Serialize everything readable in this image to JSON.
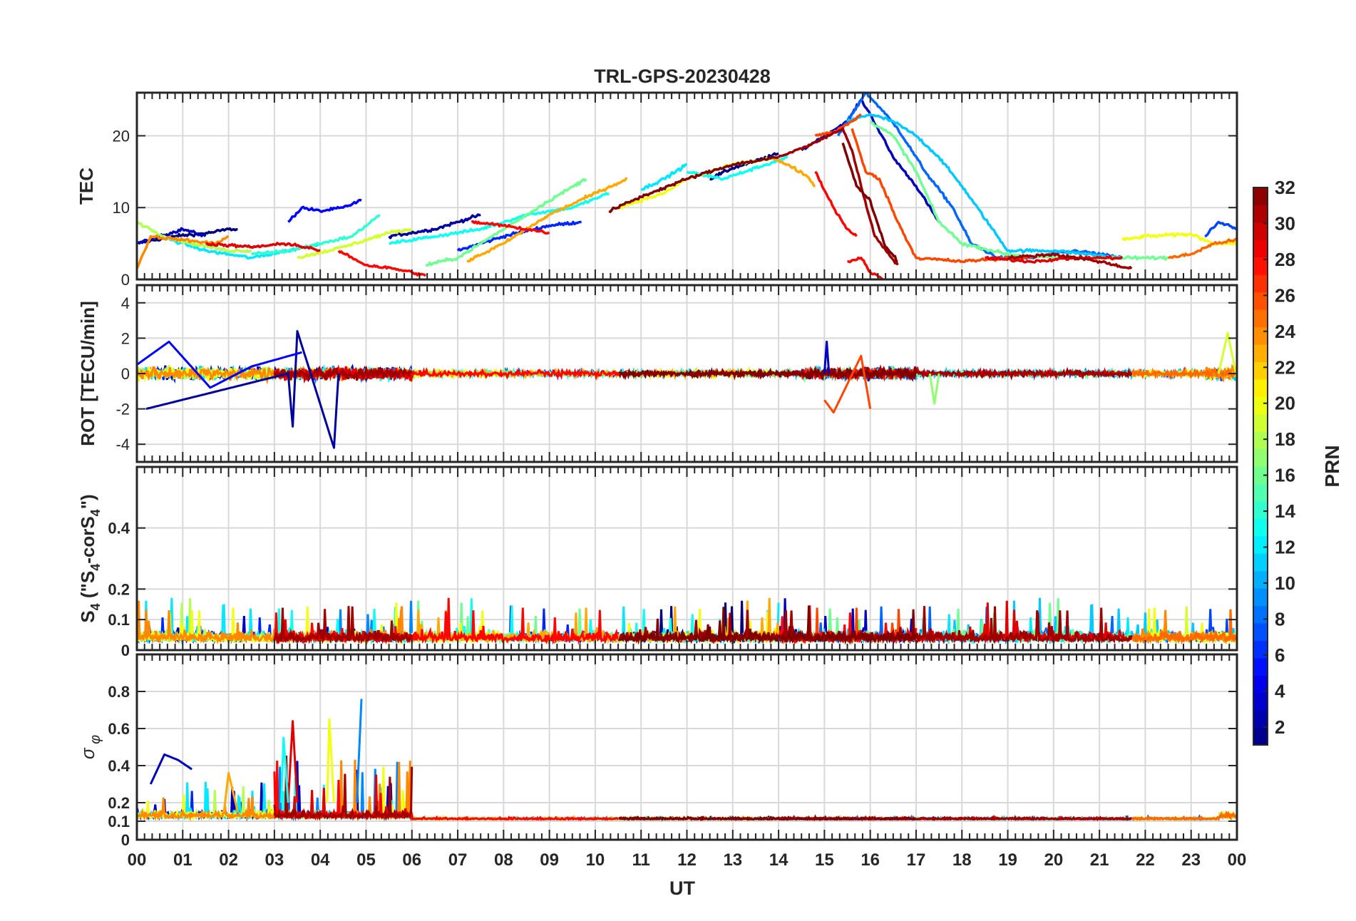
{
  "figure": {
    "title": "TRL-GPS-20230428",
    "xlabel": "UT",
    "xticks": [
      "00",
      "01",
      "02",
      "03",
      "04",
      "05",
      "06",
      "07",
      "08",
      "09",
      "10",
      "11",
      "12",
      "13",
      "14",
      "15",
      "16",
      "17",
      "18",
      "19",
      "20",
      "21",
      "22",
      "23",
      "00"
    ],
    "colorbar": {
      "label": "PRN",
      "range": [
        1,
        32
      ],
      "ticks": [
        2,
        4,
        6,
        8,
        10,
        12,
        14,
        16,
        18,
        20,
        22,
        24,
        26,
        28,
        30,
        32
      ],
      "colormap": "jet"
    }
  },
  "chart_data": [
    {
      "type": "line",
      "panel": "TEC",
      "ylabel": "TEC",
      "xlim": [
        0,
        24
      ],
      "ylim": [
        0,
        26
      ],
      "yticks": [
        0,
        10,
        20
      ],
      "grid": true,
      "series": [
        {
          "prn": 1,
          "x": [
            0.0,
            0.8,
            1.6,
            2.0,
            2.2
          ],
          "y": [
            5,
            6,
            6.5,
            7,
            7
          ]
        },
        {
          "prn": 3,
          "x": [
            0.0,
            0.5,
            1.0,
            1.5
          ],
          "y": [
            5,
            6,
            7,
            6
          ]
        },
        {
          "prn": 5,
          "x": [
            3.3,
            3.6,
            4.0,
            4.5,
            4.9
          ],
          "y": [
            8,
            10,
            9.5,
            10,
            11
          ]
        },
        {
          "prn": 2,
          "x": [
            5.5,
            6.5,
            7.0,
            7.5
          ],
          "y": [
            6,
            7,
            8,
            9
          ]
        },
        {
          "prn": 6,
          "x": [
            7.0,
            8.0,
            9.0,
            9.7
          ],
          "y": [
            4,
            6,
            7.5,
            8
          ]
        },
        {
          "prn": 1,
          "x": [
            12.5,
            13.0,
            13.5,
            14.0
          ],
          "y": [
            14,
            15.5,
            16.5,
            17.5
          ]
        },
        {
          "prn": 3,
          "x": [
            14.5,
            15.0,
            15.5,
            15.8,
            16.0,
            16.5,
            17.0,
            17.5
          ],
          "y": [
            18,
            20,
            22,
            25,
            23,
            17,
            13,
            8
          ]
        },
        {
          "prn": 8,
          "x": [
            15.3,
            15.6,
            15.9,
            16.2,
            16.6,
            17.2,
            17.8,
            18.2,
            18.8,
            19.5,
            20.5,
            21.5
          ],
          "y": [
            20,
            23,
            26,
            24,
            21,
            15,
            10,
            5,
            3,
            3,
            4,
            3
          ]
        },
        {
          "prn": 11,
          "x": [
            15.5,
            16.0,
            16.5,
            17.0,
            17.5,
            18.0,
            19.0,
            20.0,
            21.5
          ],
          "y": [
            22,
            23,
            22,
            20,
            17,
            13,
            4,
            4,
            3
          ]
        },
        {
          "prn": 12,
          "x": [
            0.5,
            1.5,
            2.5,
            3.3,
            4.0
          ],
          "y": [
            6,
            4,
            3,
            4,
            5
          ]
        },
        {
          "prn": 12,
          "x": [
            11.0,
            11.5,
            12.0
          ],
          "y": [
            12.5,
            14,
            16
          ]
        },
        {
          "prn": 13,
          "x": [
            5.5,
            6.5,
            7.5,
            8.5,
            9.5,
            10.3
          ],
          "y": [
            5,
            6,
            7,
            9,
            10,
            12
          ]
        },
        {
          "prn": 13,
          "x": [
            12.0,
            12.8,
            13.5,
            14.2
          ],
          "y": [
            15,
            14,
            15.5,
            17
          ]
        },
        {
          "prn": 14,
          "x": [
            2.5,
            3.3,
            4.0,
            4.7,
            5.3
          ],
          "y": [
            3.5,
            4,
            5,
            6,
            9
          ]
        },
        {
          "prn": 16,
          "x": [
            6.3,
            7.0,
            8.0,
            9.0,
            9.8
          ],
          "y": [
            2,
            3,
            7,
            11,
            14
          ]
        },
        {
          "prn": 16,
          "x": [
            16.0,
            16.5,
            17.0,
            17.5,
            18.0,
            19.0,
            20.0,
            21.0,
            22.0,
            22.5
          ],
          "y": [
            22,
            20,
            15,
            8,
            5,
            3.5,
            3,
            3,
            3,
            3
          ]
        },
        {
          "prn": 18,
          "x": [
            0.0,
            0.6,
            1.2,
            2.0,
            2.5
          ],
          "y": [
            8,
            6,
            5,
            4,
            4
          ]
        },
        {
          "prn": 19,
          "x": [
            3.5,
            4.5,
            5.5,
            6.0
          ],
          "y": [
            3,
            4.5,
            6.5,
            7
          ]
        },
        {
          "prn": 20,
          "x": [
            10.5,
            11.5,
            12.0,
            13.0,
            14.0
          ],
          "y": [
            10,
            12,
            14,
            16,
            17
          ]
        },
        {
          "prn": 20,
          "x": [
            21.5,
            22.0,
            23.0,
            23.5,
            24.0
          ],
          "y": [
            5.5,
            6,
            6.3,
            5,
            5
          ]
        },
        {
          "prn": 23,
          "x": [
            7.2,
            8.0,
            9.0,
            10.0,
            10.7
          ],
          "y": [
            2.5,
            5,
            9,
            12,
            14
          ]
        },
        {
          "prn": 23,
          "x": [
            13.8,
            14.2,
            14.6,
            14.8
          ],
          "y": [
            17,
            16,
            14.5,
            13
          ]
        },
        {
          "prn": 24,
          "x": [
            0.0,
            0.3,
            1.0,
            1.7,
            2.0
          ],
          "y": [
            1.5,
            6,
            5.5,
            5,
            6
          ]
        },
        {
          "prn": 25,
          "x": [
            22.5,
            23.0,
            23.5,
            24.0
          ],
          "y": [
            3,
            3.5,
            5,
            5.5
          ]
        },
        {
          "prn": 26,
          "x": [
            14.8,
            15.2,
            15.6,
            15.8
          ],
          "y": [
            20,
            20.5,
            22,
            23
          ]
        },
        {
          "prn": 26,
          "x": [
            15.6,
            15.9,
            16.2,
            16.6,
            17.0,
            18.0,
            19.0,
            19.5
          ],
          "y": [
            21,
            15,
            14,
            8,
            3,
            2.5,
            3,
            3
          ]
        },
        {
          "prn": 28,
          "x": [
            4.4,
            5.0,
            5.6,
            6.0,
            6.3
          ],
          "y": [
            4,
            2,
            1.5,
            1,
            0.5
          ]
        },
        {
          "prn": 28,
          "x": [
            7.3,
            8.0,
            8.5,
            9.0
          ],
          "y": [
            8,
            7.5,
            7,
            6.5
          ]
        },
        {
          "prn": 28,
          "x": [
            14.8,
            15.2,
            15.5,
            15.7
          ],
          "y": [
            15,
            10,
            7,
            6
          ]
        },
        {
          "prn": 28,
          "x": [
            15.5,
            15.8,
            16.0,
            16.3
          ],
          "y": [
            2.5,
            3,
            1,
            0
          ]
        },
        {
          "prn": 29,
          "x": [
            1.5,
            2.5,
            3.3,
            4.0
          ],
          "y": [
            5,
            4.5,
            5,
            4
          ]
        },
        {
          "prn": 29,
          "x": [
            18.5,
            19.5,
            20.5,
            21.5
          ],
          "y": [
            3,
            2.5,
            3,
            3
          ]
        },
        {
          "prn": 31,
          "x": [
            14.0,
            14.6,
            15.1,
            15.4,
            15.6,
            15.8,
            16.1,
            16.6
          ],
          "y": [
            17,
            18.5,
            20,
            21,
            18,
            13,
            6,
            2
          ]
        },
        {
          "prn": 31,
          "x": [
            19.0,
            20.0,
            21.0,
            21.7
          ],
          "y": [
            3,
            3.5,
            2.5,
            1.5
          ]
        },
        {
          "prn": 32,
          "x": [
            10.3,
            11.0,
            12.0,
            13.0,
            14.0
          ],
          "y": [
            9.5,
            11.5,
            14,
            16,
            17
          ]
        },
        {
          "prn": 32,
          "x": [
            15.4,
            15.7,
            16.0,
            16.3,
            16.6
          ],
          "y": [
            19,
            13,
            11,
            5,
            2.5
          ]
        },
        {
          "prn": 7,
          "x": [
            23.3,
            23.6,
            24.0
          ],
          "y": [
            6,
            8,
            7
          ]
        }
      ]
    },
    {
      "type": "line",
      "panel": "ROT",
      "ylabel": "ROT [TECU/min]",
      "xlim": [
        0,
        24
      ],
      "ylim": [
        -5,
        5
      ],
      "yticks": [
        -4,
        -2,
        0,
        2,
        4
      ],
      "grid": true,
      "series": [
        {
          "prn": 2,
          "x": [
            0.2,
            3.3,
            3.4,
            3.5,
            4.3,
            4.4
          ],
          "y": [
            -2,
            0,
            -3,
            2.4,
            -4.2,
            0
          ]
        },
        {
          "prn": 5,
          "x": [
            0.0,
            0.7,
            1.6,
            2.5,
            3.6
          ],
          "y": [
            0.5,
            1.8,
            -0.8,
            0.4,
            1.2
          ]
        },
        {
          "prn": 3,
          "x": [
            15.0,
            15.05,
            15.1
          ],
          "y": [
            0,
            1.8,
            0
          ]
        },
        {
          "prn": 17,
          "x": [
            17.3,
            17.4,
            17.5
          ],
          "y": [
            0,
            -1.7,
            0
          ]
        },
        {
          "prn": 19,
          "x": [
            23.6,
            23.8,
            24.0
          ],
          "y": [
            0,
            2.3,
            -0.3
          ]
        },
        {
          "prn": 26,
          "x": [
            15.0,
            15.2,
            15.8,
            16.0
          ],
          "y": [
            -1.5,
            -2.2,
            1.0,
            -2.0
          ]
        }
      ]
    },
    {
      "type": "line",
      "panel": "S4",
      "ylabel": "S4 (\"S4-corS4\")",
      "xlim": [
        0,
        24
      ],
      "ylim": [
        0,
        0.6
      ],
      "yticks": [
        0,
        0.1,
        0.2,
        0.4
      ],
      "grid": true,
      "typical_max": 0.2
    },
    {
      "type": "line",
      "panel": "sigma_phi",
      "ylabel": "σ φ",
      "xlim": [
        0,
        24
      ],
      "ylim": [
        0,
        1.0
      ],
      "yticks": [
        0,
        0.1,
        0.2,
        0.4,
        0.6,
        0.8
      ],
      "grid": true,
      "series": [
        {
          "prn": 3,
          "x": [
            0.3,
            0.6,
            0.9,
            1.2
          ],
          "y": [
            0.3,
            0.46,
            0.43,
            0.38
          ]
        },
        {
          "prn": 9,
          "x": [
            4.8,
            4.9
          ],
          "y": [
            0.2,
            0.76
          ]
        },
        {
          "prn": 29,
          "x": [
            3.3,
            3.4,
            3.5
          ],
          "y": [
            0.2,
            0.64,
            0.2
          ]
        },
        {
          "prn": 20,
          "x": [
            4.15,
            4.2,
            4.3
          ],
          "y": [
            0.2,
            0.65,
            0.2
          ]
        },
        {
          "prn": 13,
          "x": [
            3.15,
            3.2,
            3.3
          ],
          "y": [
            0.2,
            0.55,
            0.2
          ]
        },
        {
          "prn": 23,
          "x": [
            1.9,
            2.0,
            2.2
          ],
          "y": [
            0.15,
            0.36,
            0.15
          ]
        }
      ]
    }
  ]
}
